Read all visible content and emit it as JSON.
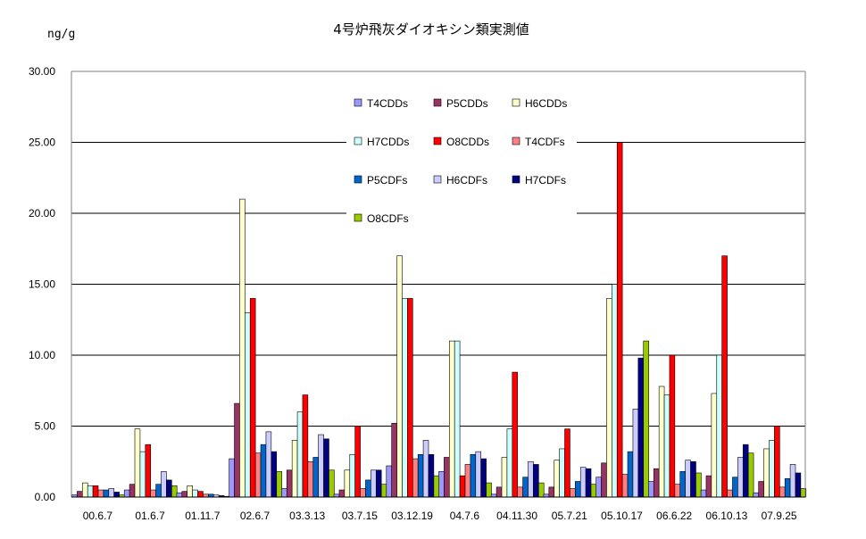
{
  "chart_data": {
    "type": "bar",
    "title": "4号炉飛灰ダイオキシン類実測値",
    "ylabel": "ng/g",
    "ylim": [
      0,
      30
    ],
    "yticks": [
      "0.00",
      "5.00",
      "10.00",
      "15.00",
      "20.00",
      "25.00",
      "30.00"
    ],
    "grid": true,
    "legend_position": "top-center (inside plot)",
    "categories": [
      "00.6.7",
      "01.6.7",
      "01.11.7",
      "02.6.7",
      "03.3.13",
      "03.7.15",
      "03.12.19",
      "04.7.6",
      "04.11.30",
      "05.7.21",
      "05.10.17",
      "06.6.22",
      "06.10.13",
      "07.9.25"
    ],
    "series": [
      {
        "name": "T4CDDs",
        "color": "#9999FF",
        "values": [
          0.15,
          0.5,
          0.3,
          2.7,
          0.6,
          0.2,
          2.2,
          1.8,
          0.2,
          0.2,
          1.4,
          1.1,
          0.5,
          0.3
        ]
      },
      {
        "name": "P5CDDs",
        "color": "#993366",
        "values": [
          0.4,
          0.9,
          0.4,
          6.6,
          1.9,
          0.5,
          5.2,
          2.8,
          0.7,
          0.7,
          2.4,
          2.0,
          1.5,
          1.1
        ]
      },
      {
        "name": "H6CDDs",
        "color": "#FFFFCC",
        "values": [
          1.0,
          4.8,
          0.8,
          21.0,
          4.0,
          1.9,
          17.0,
          11.0,
          2.8,
          2.6,
          14.0,
          7.8,
          7.3,
          3.4
        ]
      },
      {
        "name": "H7CDDs",
        "color": "#CCFFFF",
        "values": [
          0.8,
          3.2,
          0.5,
          13.0,
          6.0,
          3.0,
          14.0,
          11.0,
          4.8,
          3.4,
          15.0,
          7.2,
          10.0,
          4.0
        ]
      },
      {
        "name": "O8CDDs",
        "color": "#FF0000",
        "values": [
          0.8,
          3.7,
          0.4,
          14.0,
          7.2,
          5.0,
          14.0,
          1.5,
          8.8,
          4.8,
          25.0,
          10.0,
          17.0,
          5.0
        ]
      },
      {
        "name": "T4CDFs",
        "color": "#FF8080",
        "values": [
          0.5,
          0.5,
          0.2,
          3.1,
          2.5,
          0.6,
          2.7,
          2.3,
          0.7,
          0.6,
          1.6,
          0.9,
          0.5,
          0.7
        ]
      },
      {
        "name": "P5CDFs",
        "color": "#0066CC",
        "values": [
          0.5,
          0.9,
          0.2,
          3.7,
          2.8,
          1.2,
          3.0,
          3.0,
          1.4,
          1.1,
          3.2,
          1.8,
          1.4,
          1.3
        ]
      },
      {
        "name": "H6CDFs",
        "color": "#CCCCFF",
        "values": [
          0.6,
          1.8,
          0.15,
          4.6,
          4.4,
          1.9,
          4.0,
          3.2,
          2.5,
          2.1,
          6.2,
          2.6,
          2.8,
          2.3
        ]
      },
      {
        "name": "H7CDFs",
        "color": "#000080",
        "values": [
          0.35,
          1.2,
          0.1,
          3.2,
          4.1,
          1.9,
          3.0,
          2.7,
          2.3,
          2.0,
          9.8,
          2.5,
          3.7,
          1.7
        ]
      },
      {
        "name": "O8CDFs",
        "color": "#99CC00",
        "values": [
          0.15,
          0.8,
          0.05,
          1.8,
          1.9,
          0.9,
          1.5,
          1.0,
          1.0,
          0.9,
          11.0,
          1.7,
          3.1,
          0.6
        ]
      }
    ]
  }
}
